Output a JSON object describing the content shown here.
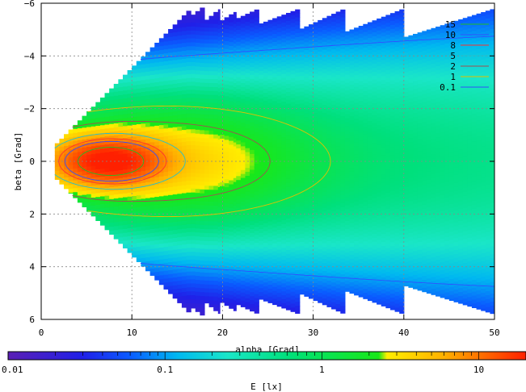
{
  "chart_data": {
    "type": "heatmap",
    "xlabel": "alpha [Grad]",
    "ylabel": "beta [Grad]",
    "colorbar_label": "E [lx]",
    "xlim": [
      0,
      50
    ],
    "ylim": [
      -6,
      6
    ],
    "x_ticks": [
      0,
      10,
      20,
      30,
      40,
      50
    ],
    "y_ticks": [
      -6,
      -4,
      -2,
      0,
      2,
      4,
      6
    ],
    "y_inverted": true,
    "grid": true,
    "color_scale": "log",
    "colorbar_range": [
      0.01,
      20
    ],
    "colorbar_ticks": [
      {
        "value": 0.01,
        "label": "0.01"
      },
      {
        "value": 0.1,
        "label": "0.1"
      },
      {
        "value": 1,
        "label": "1"
      },
      {
        "value": 10,
        "label": "10"
      }
    ],
    "colorbar_stops": [
      {
        "value": 0.01,
        "color": "#5a1fb4"
      },
      {
        "value": 0.03,
        "color": "#2020e8"
      },
      {
        "value": 0.06,
        "color": "#0a5cff"
      },
      {
        "value": 0.12,
        "color": "#00b8f0"
      },
      {
        "value": 0.25,
        "color": "#1ae6c8"
      },
      {
        "value": 0.6,
        "color": "#00e07c"
      },
      {
        "value": 2.3,
        "color": "#18e818"
      },
      {
        "value": 2.6,
        "color": "#ffee00"
      },
      {
        "value": 6,
        "color": "#ffb000"
      },
      {
        "value": 20,
        "color": "#ff2000"
      }
    ],
    "legend_position": "top-right",
    "contour_levels": [
      {
        "label": "15",
        "value": 15,
        "color": "#22bb22"
      },
      {
        "label": "10",
        "value": 10,
        "color": "#3050ff"
      },
      {
        "label": "8",
        "value": 8,
        "color": "#ff3030"
      },
      {
        "label": "5",
        "value": 5,
        "color": "#20c0d0"
      },
      {
        "label": "2",
        "value": 2,
        "color": "#a05050"
      },
      {
        "label": "1",
        "value": 1,
        "color": "#e0c000"
      },
      {
        "label": "0.1",
        "value": 0.1,
        "color": "#3050ff"
      }
    ],
    "columns": [
      {
        "x_start": 1.5,
        "x_end": 16.5,
        "beta_half_width_at_start": 0.6,
        "beta_half_width_at_end": 5.8
      },
      {
        "x_start": 16.5,
        "x_end": 18.0,
        "beta_half_width_at_start": 5.5,
        "beta_half_width_at_end": 5.9
      },
      {
        "x_start": 18.0,
        "x_end": 19.7,
        "beta_half_width_at_start": 5.3,
        "beta_half_width_at_end": 5.8
      },
      {
        "x_start": 19.7,
        "x_end": 21.5,
        "beta_half_width_at_start": 5.3,
        "beta_half_width_at_end": 5.7
      },
      {
        "x_start": 21.5,
        "x_end": 24.0,
        "beta_half_width_at_start": 5.4,
        "beta_half_width_at_end": 5.8
      },
      {
        "x_start": 24.0,
        "x_end": 28.5,
        "beta_half_width_at_start": 5.2,
        "beta_half_width_at_end": 5.8
      },
      {
        "x_start": 28.5,
        "x_end": 33.5,
        "beta_half_width_at_start": 5.0,
        "beta_half_width_at_end": 5.8
      },
      {
        "x_start": 33.5,
        "x_end": 40.0,
        "beta_half_width_at_start": 4.9,
        "beta_half_width_at_end": 5.8
      },
      {
        "x_start": 40.0,
        "x_end": 50.0,
        "beta_half_width_at_start": 4.7,
        "beta_half_width_at_end": 5.8
      }
    ],
    "peak": {
      "alpha": 7.5,
      "beta": 0.0,
      "value": 20
    }
  }
}
